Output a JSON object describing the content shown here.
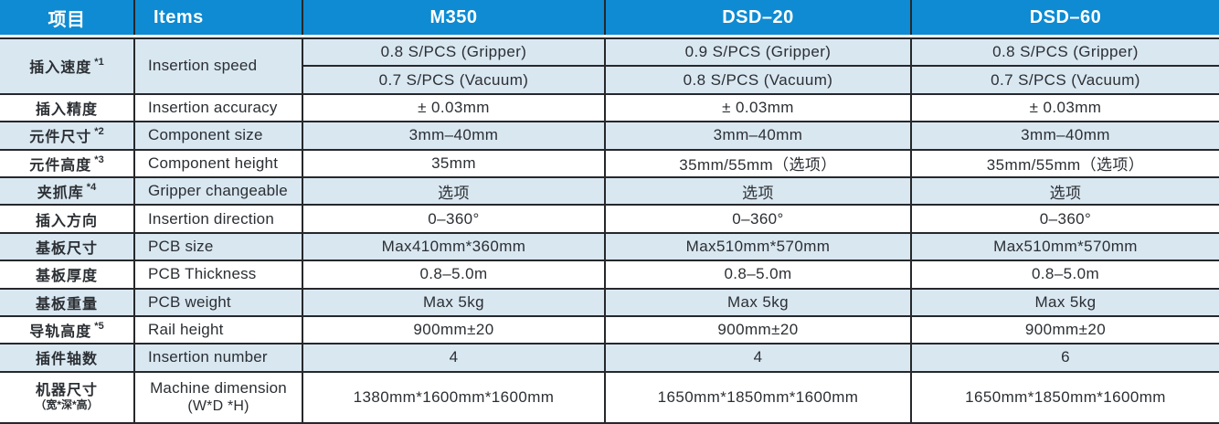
{
  "colors": {
    "header_bg": "#0e8bd2",
    "header_text": "#ffffff",
    "row_shade": "#d9e7f1",
    "border": "#26282b",
    "text": "#2b2f33"
  },
  "table": {
    "headers": [
      "项目",
      "Items",
      "M350",
      "DSD–20",
      "DSD–60"
    ],
    "rows": [
      {
        "label_zh": "插入速度",
        "zh_note": "*1",
        "label_en": "Insertion speed",
        "shaded": true,
        "values": [
          [
            "0.8 S/PCS (Gripper)",
            "0.9 S/PCS (Gripper)",
            "0.8 S/PCS (Gripper)"
          ],
          [
            "0.7 S/PCS (Vacuum)",
            "0.8 S/PCS (Vacuum)",
            "0.7 S/PCS (Vacuum)"
          ]
        ]
      },
      {
        "label_zh": "插入精度",
        "label_en": "Insertion accuracy",
        "shaded": false,
        "values": [
          [
            "± 0.03mm",
            "± 0.03mm",
            "± 0.03mm"
          ]
        ]
      },
      {
        "label_zh": "元件尺寸",
        "zh_note": "*2",
        "label_en": "Component size",
        "shaded": true,
        "values": [
          [
            "3mm–40mm",
            "3mm–40mm",
            "3mm–40mm"
          ]
        ]
      },
      {
        "label_zh": "元件高度",
        "zh_note": "*3",
        "label_en": "Component height",
        "shaded": false,
        "values": [
          [
            "35mm",
            "35mm/55mm（选项）",
            "35mm/55mm（选项）"
          ]
        ]
      },
      {
        "label_zh": "夹抓库",
        "zh_note": "*4",
        "label_en": "Gripper changeable",
        "shaded": true,
        "values": [
          [
            "选项",
            "选项",
            "选项"
          ]
        ]
      },
      {
        "label_zh": "插入方向",
        "label_en": "Insertion direction",
        "shaded": false,
        "values": [
          [
            "0–360°",
            "0–360°",
            "0–360°"
          ]
        ]
      },
      {
        "label_zh": "基板尺寸",
        "label_en": "PCB size",
        "shaded": true,
        "values": [
          [
            "Max410mm*360mm",
            "Max510mm*570mm",
            "Max510mm*570mm"
          ]
        ]
      },
      {
        "label_zh": "基板厚度",
        "label_en": "PCB Thickness",
        "shaded": false,
        "values": [
          [
            "0.8–5.0m",
            "0.8–5.0m",
            "0.8–5.0m"
          ]
        ]
      },
      {
        "label_zh": "基板重量",
        "label_en": "PCB weight",
        "shaded": true,
        "values": [
          [
            "Max 5kg",
            "Max 5kg",
            "Max 5kg"
          ]
        ]
      },
      {
        "label_zh": "导轨高度",
        "zh_note": "*5",
        "label_en": "Rail height",
        "shaded": false,
        "values": [
          [
            "900mm±20",
            "900mm±20",
            "900mm±20"
          ]
        ]
      },
      {
        "label_zh": "插件轴数",
        "label_en": "Insertion number",
        "shaded": true,
        "values": [
          [
            "4",
            "4",
            "6"
          ]
        ]
      },
      {
        "label_zh": "机器尺寸",
        "zh_sub": "（宽*深*高）",
        "label_en": "Machine dimension",
        "en_sub": "(W*D *H)",
        "shaded": false,
        "values": [
          [
            "1380mm*1600mm*1600mm",
            "1650mm*1850mm*1600mm",
            "1650mm*1850mm*1600mm"
          ]
        ]
      }
    ]
  }
}
